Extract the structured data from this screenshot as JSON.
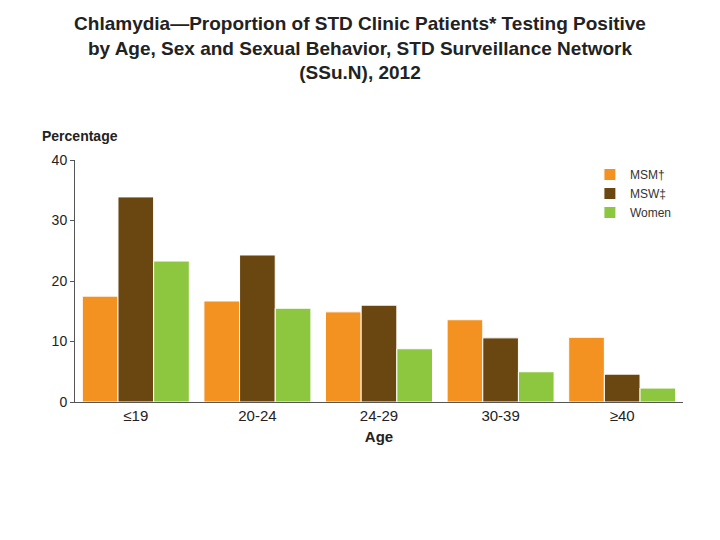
{
  "chart_data": {
    "type": "bar",
    "title": "Chlamydia—Proportion of STD Clinic Patients* Testing Positive\nby Age, Sex and Sexual Behavior, STD Surveillance Network\n(SSu.N), 2012",
    "x_label": "Age",
    "y_label": "Percentage",
    "categories": [
      "≤19",
      "20-24",
      "24-29",
      "30-39",
      "≥40"
    ],
    "series": [
      {
        "name": "MSM†",
        "color": "#f39221",
        "values": [
          17.5,
          16.7,
          14.9,
          13.6,
          10.7
        ]
      },
      {
        "name": "MSW‡",
        "color": "#6a4710",
        "values": [
          33.9,
          24.3,
          16.0,
          10.6,
          4.6
        ]
      },
      {
        "name": "Women",
        "color": "#8dc63f",
        "values": [
          23.3,
          15.5,
          8.8,
          5.0,
          2.3
        ]
      }
    ],
    "ylim": [
      0,
      40
    ],
    "yticks": [
      0,
      10,
      20,
      30,
      40
    ],
    "grid": false,
    "legend": "top-right"
  }
}
